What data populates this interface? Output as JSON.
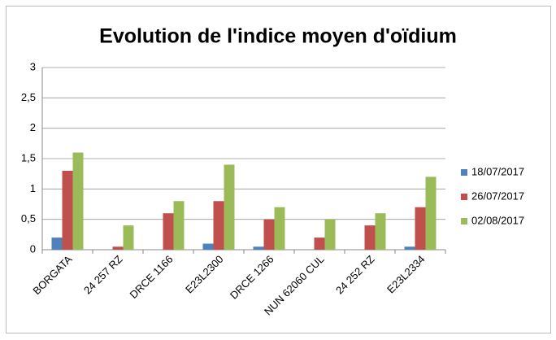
{
  "chart_data": {
    "type": "bar",
    "title": "Evolution de l'indice moyen d'oïdium",
    "categories": [
      "BORGATA",
      "24 257 RZ",
      "DRCE 1166",
      "E23L2300",
      "DRCE 1266",
      "NUN 62060 CUL",
      "24 252 RZ",
      "E23L2334"
    ],
    "series": [
      {
        "name": "18/07/2017",
        "color": "#4f81bd",
        "values": [
          0.2,
          0,
          0,
          0.1,
          0.05,
          0,
          0,
          0.05
        ]
      },
      {
        "name": "26/07/2017",
        "color": "#c0504d",
        "values": [
          1.3,
          0.05,
          0.6,
          0.8,
          0.5,
          0.2,
          0.4,
          0.7
        ]
      },
      {
        "name": "02/08/2017",
        "color": "#9bbb59",
        "values": [
          1.6,
          0.4,
          0.8,
          1.4,
          0.7,
          0.5,
          0.6,
          1.2
        ]
      }
    ],
    "ylim": [
      0,
      3
    ],
    "yticks": [
      0,
      {
        "value": 0.5,
        "label": "0,5"
      },
      1,
      {
        "value": 1.5,
        "label": "1,5"
      },
      2,
      {
        "value": 2.5,
        "label": "2,5"
      },
      3
    ],
    "grid": true,
    "legend": "right"
  }
}
